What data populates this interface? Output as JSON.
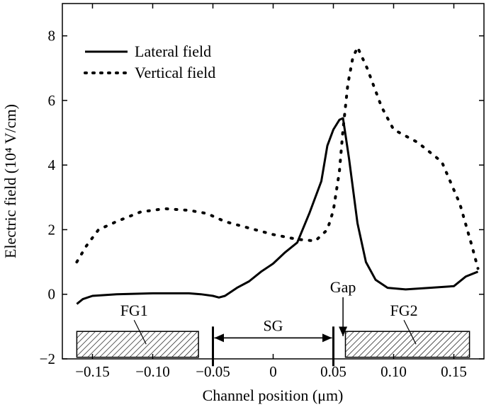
{
  "chart_data": {
    "type": "line",
    "title": "",
    "xlabel": "Channel position (μm)",
    "ylabel": "Electric field (10⁴ V/cm)",
    "xlim": [
      -0.175,
      0.175
    ],
    "ylim": [
      -2,
      9
    ],
    "x_ticks": [
      -0.15,
      -0.1,
      -0.05,
      0,
      0.05,
      0.1,
      0.15
    ],
    "x_tick_labels": [
      "−0.15",
      "−0.10",
      "−0.05",
      "0",
      "0.05",
      "0.10",
      "0.15"
    ],
    "y_ticks": [
      -2,
      0,
      2,
      4,
      6,
      8
    ],
    "y_tick_labels": [
      "−2",
      "0",
      "2",
      "4",
      "6",
      "8"
    ],
    "legend_position": "top-left",
    "series": [
      {
        "name": "Lateral field",
        "style": "solid",
        "x": [
          -0.163,
          -0.158,
          -0.15,
          -0.13,
          -0.1,
          -0.07,
          -0.06,
          -0.05,
          -0.045,
          -0.04,
          -0.03,
          -0.02,
          -0.01,
          0.0,
          0.01,
          0.02,
          0.03,
          0.04,
          0.045,
          0.05,
          0.055,
          0.058,
          0.063,
          0.07,
          0.077,
          0.085,
          0.095,
          0.11,
          0.13,
          0.15,
          0.16,
          0.17
        ],
        "y": [
          -0.3,
          -0.15,
          -0.05,
          0.0,
          0.03,
          0.03,
          0.0,
          -0.05,
          -0.1,
          -0.05,
          0.2,
          0.4,
          0.7,
          0.95,
          1.3,
          1.6,
          2.5,
          3.5,
          4.6,
          5.1,
          5.4,
          5.45,
          4.2,
          2.2,
          1.0,
          0.45,
          0.2,
          0.15,
          0.2,
          0.25,
          0.55,
          0.7
        ]
      },
      {
        "name": "Vertical field",
        "style": "dotted",
        "x": [
          -0.163,
          -0.155,
          -0.145,
          -0.13,
          -0.11,
          -0.09,
          -0.07,
          -0.055,
          -0.04,
          -0.02,
          0.0,
          0.02,
          0.035,
          0.045,
          0.05,
          0.055,
          0.058,
          0.062,
          0.066,
          0.07,
          0.078,
          0.09,
          0.1,
          0.12,
          0.14,
          0.155,
          0.165,
          0.17
        ],
        "y": [
          1.0,
          1.5,
          2.0,
          2.25,
          2.55,
          2.65,
          2.6,
          2.5,
          2.25,
          2.05,
          1.85,
          1.7,
          1.65,
          2.0,
          2.6,
          3.8,
          5.1,
          6.5,
          7.3,
          7.65,
          7.0,
          5.8,
          5.1,
          4.7,
          4.1,
          2.8,
          1.5,
          0.8
        ]
      }
    ],
    "annotations": {
      "fg1": {
        "label": "FG1",
        "x_start": -0.163,
        "x_end": -0.062,
        "y_start": -1.95,
        "y_end": -1.15
      },
      "fg2": {
        "label": "FG2",
        "x_start": 0.06,
        "x_end": 0.163,
        "y_start": -1.95,
        "y_end": -1.15
      },
      "sg": {
        "label": "SG",
        "x_start": -0.05,
        "x_end": 0.05,
        "y": -1.35
      },
      "gap": {
        "label": "Gap",
        "x": 0.058
      }
    }
  }
}
